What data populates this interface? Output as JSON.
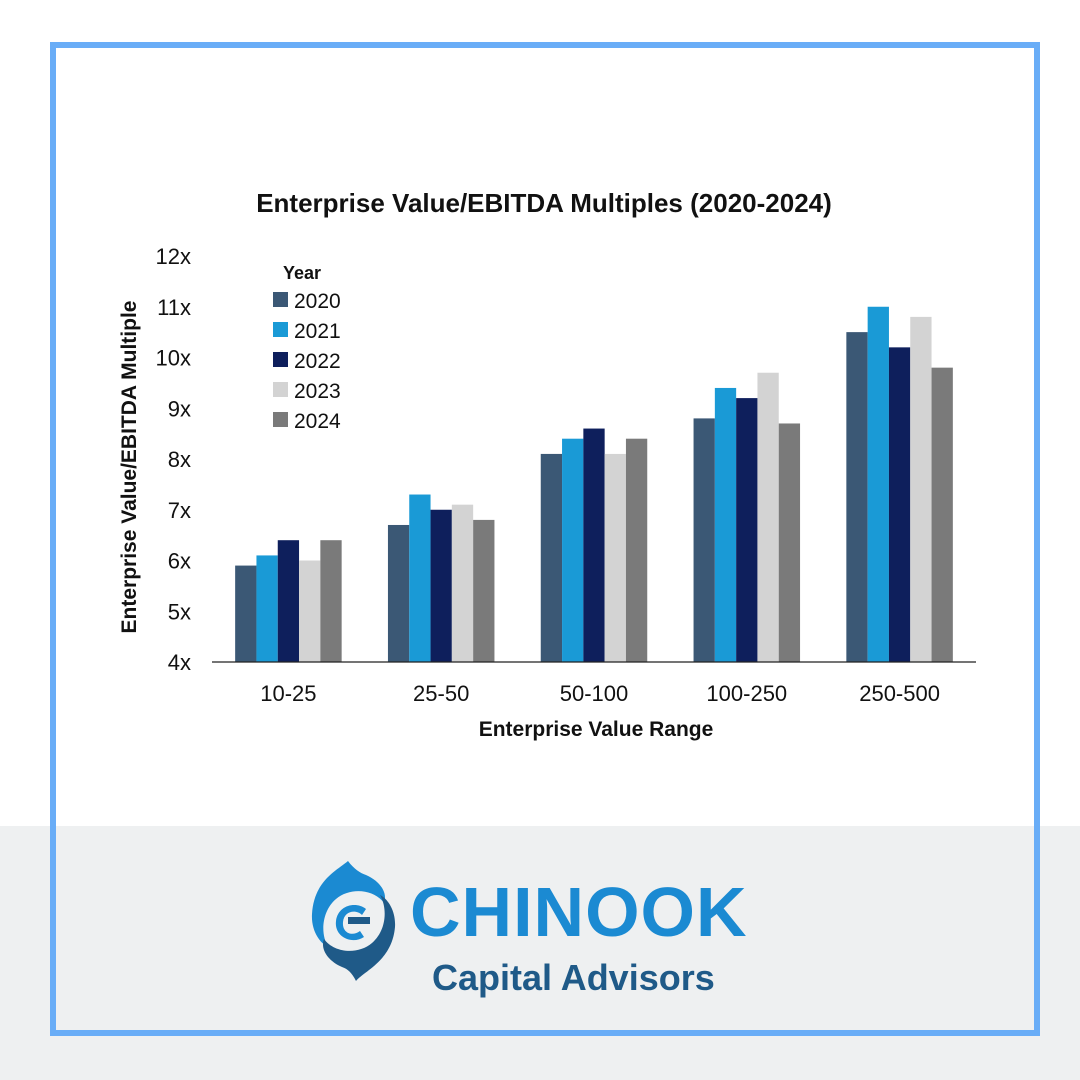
{
  "chart_data": {
    "type": "bar",
    "title": "Enterprise Value/EBITDA Multiples (2020-2024)",
    "xlabel": "Enterprise Value Range",
    "ylabel": "Enterprise Value/EBITDA Multiple",
    "ylim": [
      4,
      12
    ],
    "yticks": [
      "4x",
      "5x",
      "6x",
      "7x",
      "8x",
      "9x",
      "10x",
      "11x",
      "12x"
    ],
    "categories": [
      "10-25",
      "25-50",
      "50-100",
      "100-250",
      "250-500"
    ],
    "legend_title": "Year",
    "legend_position": "top-left",
    "grid": false,
    "series": [
      {
        "name": "2020",
        "color": "#3b5875",
        "values": [
          5.9,
          6.7,
          8.1,
          8.8,
          10.5
        ]
      },
      {
        "name": "2021",
        "color": "#1a9ad6",
        "values": [
          6.1,
          7.3,
          8.4,
          9.4,
          11.0
        ]
      },
      {
        "name": "2022",
        "color": "#0e1f5c",
        "values": [
          6.4,
          7.0,
          8.6,
          9.2,
          10.2
        ]
      },
      {
        "name": "2023",
        "color": "#d3d3d3",
        "values": [
          6.0,
          7.1,
          8.1,
          9.7,
          10.8
        ]
      },
      {
        "name": "2024",
        "color": "#7a7a7a",
        "values": [
          6.4,
          6.8,
          8.4,
          8.7,
          9.8
        ]
      }
    ]
  },
  "brand": {
    "name": "CHINOOK",
    "subtitle": "Capital Advisors",
    "logo_icon": "chinook-salmon-icon",
    "primary_color": "#1b8ad2",
    "secondary_color": "#1f5a88",
    "frame_color": "#69adf7"
  }
}
